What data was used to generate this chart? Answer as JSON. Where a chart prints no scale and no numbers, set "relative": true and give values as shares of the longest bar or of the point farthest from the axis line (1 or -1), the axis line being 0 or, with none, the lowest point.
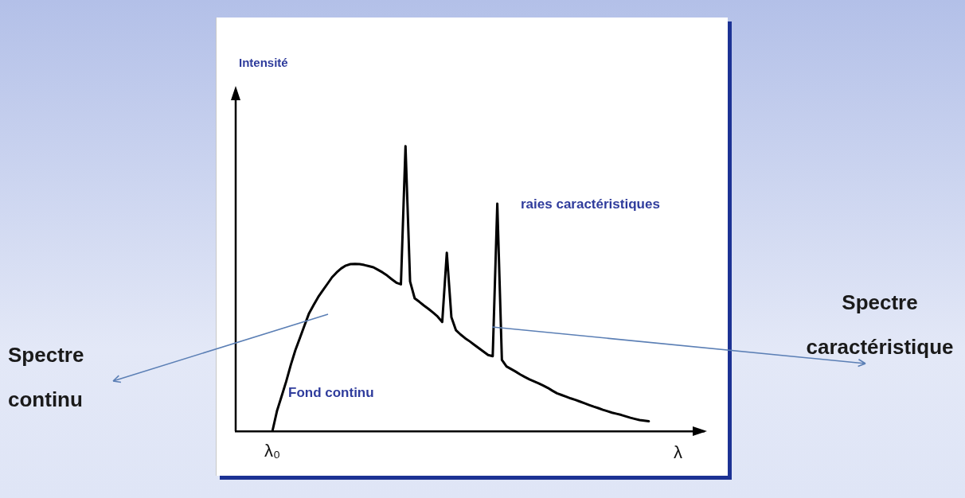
{
  "chart_data": {
    "type": "line",
    "relative": true,
    "xlabel": "λ",
    "annotations": [
      "raies caractéristiques",
      "Fond continu",
      "Spectre continu",
      "Spectre caractéristique",
      "λ₀",
      "Intensité"
    ],
    "tick_labels": false,
    "categories": [
      null,
      null,
      null,
      null,
      null,
      null,
      null,
      null,
      null,
      null,
      null,
      null,
      null,
      null,
      null,
      null,
      null,
      null,
      null,
      null,
      null,
      null,
      null,
      null,
      null,
      null,
      null,
      null,
      null,
      null,
      null,
      null,
      null,
      null,
      null,
      null,
      null,
      null,
      null,
      null,
      null,
      null,
      null,
      null,
      null,
      null,
      null,
      null,
      null,
      null,
      null,
      null,
      null,
      null,
      null,
      null,
      null,
      null,
      null,
      null,
      null,
      null,
      null,
      null,
      null,
      null,
      null,
      null,
      null,
      null,
      null,
      null,
      null,
      null,
      null,
      null,
      null,
      null,
      null,
      null,
      null,
      null,
      null,
      null,
      null,
      null,
      null,
      null,
      null,
      null,
      null,
      null,
      null,
      null,
      null,
      null,
      null,
      null,
      null,
      null,
      null,
      null,
      null
    ],
    "values": [
      null,
      null,
      null,
      null,
      null,
      null,
      null,
      null,
      0,
      0.071,
      0.122,
      0.174,
      0.232,
      0.284,
      0.327,
      0.371,
      0.414,
      0.443,
      0.471,
      0.494,
      0.517,
      0.54,
      0.557,
      0.571,
      0.581,
      0.586,
      0.587,
      0.586,
      0.583,
      0.579,
      0.575,
      0.566,
      0.557,
      0.546,
      0.533,
      0.521,
      0.515,
      1,
      0.525,
      0.466,
      0.454,
      0.441,
      0.429,
      0.416,
      0.402,
      0.383,
      0.626,
      0.4,
      0.354,
      0.339,
      0.326,
      0.315,
      0.303,
      0.291,
      0.279,
      0.267,
      0.263,
      0.798,
      0.25,
      0.227,
      0.218,
      0.209,
      0.199,
      0.19,
      0.182,
      0.175,
      0.168,
      0.16,
      0.152,
      0.142,
      0.133,
      0.127,
      0.121,
      0.115,
      0.11,
      0.104,
      0.098,
      0.092,
      0.086,
      0.081,
      0.075,
      0.07,
      0.065,
      0.061,
      0.057,
      0.052,
      0.047,
      0.043,
      0.039,
      0.037,
      0.035,
      null,
      null,
      null,
      null,
      null,
      null,
      null,
      null,
      null,
      null,
      null,
      null
    ],
    "color": "#000000",
    "grid": false,
    "legend": false,
    "marker": "none",
    "line_style": "solid"
  }
}
